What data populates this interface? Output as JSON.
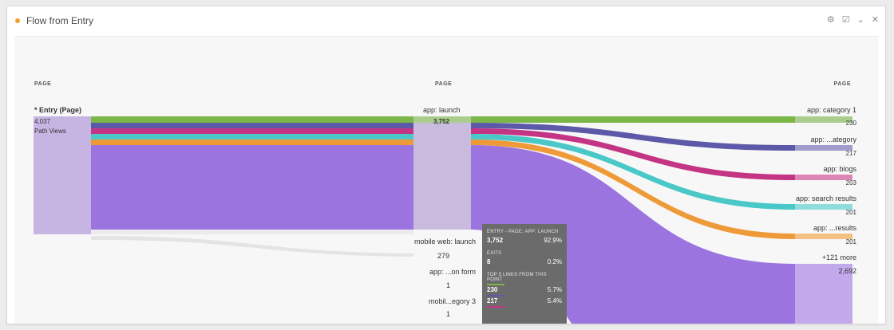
{
  "panel": {
    "title": "Flow from Entry",
    "icons": [
      "gear-icon",
      "export-icon",
      "chevron-down-icon",
      "close-icon"
    ]
  },
  "columns": {
    "left": {
      "header": "PAGE",
      "node_label": "* Entry (Page)",
      "node_value": "4,037",
      "node_sub": "Path Views"
    },
    "middle": {
      "header": "PAGE",
      "node_label": "app: launch",
      "node_value": "3,752"
    },
    "right": {
      "header": "PAGE"
    }
  },
  "middle_others": [
    {
      "label": "mobile web: launch",
      "value": "279"
    },
    {
      "label": "app: ...on form",
      "value": "1"
    },
    {
      "label": "mobil...egory 3",
      "value": "1"
    }
  ],
  "right_nodes": [
    {
      "label": "app: category 1",
      "value": "230",
      "color": "#7ab648"
    },
    {
      "label": "app: ...ategory",
      "value": "217",
      "color": "#5c5aa8"
    },
    {
      "label": "app: blogs",
      "value": "203",
      "color": "#c33584"
    },
    {
      "label": "app: search results",
      "value": "201",
      "color": "#4ac8c8"
    },
    {
      "label": "app: ...results",
      "value": "201",
      "color": "#ef9a38"
    },
    {
      "label": "+121 more",
      "value": "2,692",
      "color": "#9b74e0"
    }
  ],
  "tooltip": {
    "heading": "ENTRY - PAGE: APP: LAUNCH",
    "count": "3,752",
    "pct": "92.9%",
    "exits_heading": "EXITS",
    "exits_count": "8",
    "exits_pct": "0.2%",
    "links_heading": "TOP 5 LINKS FROM THIS POINT",
    "links": [
      {
        "count": "230",
        "pct": "5.7%",
        "color": "#7ab648"
      },
      {
        "count": "217",
        "pct": "5.4%",
        "color": "#5c5aa8"
      }
    ]
  },
  "colors": {
    "green": "#7ab648",
    "navy": "#5c5aa8",
    "magenta": "#c33584",
    "teal": "#4ac8c8",
    "orange": "#ef9a38",
    "purple": "#9b74e0",
    "accent": "#f0a02a"
  }
}
